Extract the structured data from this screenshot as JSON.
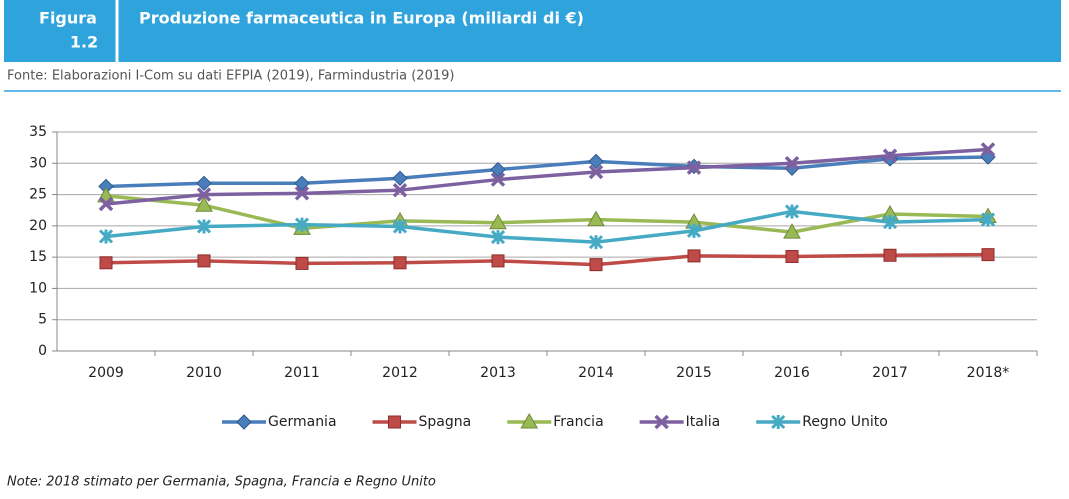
{
  "figure_label": "Figura",
  "figure_number": "1.2",
  "source": "Fonte: Elaborazioni I-Com su dati EFPIA (2019), Farmindustria (2019)",
  "note": "Note: 2018 stimato per Germania, Spagna, Francia e Regno Unito",
  "chart_data": {
    "type": "line",
    "title": "Produzione farmaceutica in Europa (miliardi di €)",
    "categories": [
      "2009",
      "2010",
      "2011",
      "2012",
      "2013",
      "2014",
      "2015",
      "2016",
      "2017",
      "2018*"
    ],
    "series": [
      {
        "name": "Germania",
        "color": "#4a7ebb",
        "marker": "diamond",
        "values": [
          26.3,
          26.8,
          26.8,
          27.6,
          29,
          30.3,
          29.5,
          29.2,
          30.7,
          31
        ]
      },
      {
        "name": "Spagna",
        "color": "#be4b48",
        "marker": "square",
        "values": [
          14.1,
          14.4,
          14,
          14.1,
          14.4,
          13.8,
          15.2,
          15.1,
          15.3,
          15.4
        ]
      },
      {
        "name": "Francia",
        "color": "#98b954",
        "marker": "triangle",
        "values": [
          24.8,
          23.3,
          19.6,
          20.8,
          20.5,
          21,
          20.6,
          19,
          21.9,
          21.5
        ]
      },
      {
        "name": "Italia",
        "color": "#7d60a0",
        "marker": "x",
        "values": [
          23.5,
          25,
          25.2,
          25.7,
          27.4,
          28.6,
          29.3,
          30,
          31.2,
          32.2
        ]
      },
      {
        "name": "Regno Unito",
        "color": "#46aac5",
        "marker": "star",
        "values": [
          18.3,
          19.9,
          20.2,
          19.9,
          18.2,
          17.4,
          19.2,
          22.3,
          20.6,
          21
        ]
      }
    ],
    "ylim": [
      0,
      35
    ],
    "yticks": [
      0,
      5,
      10,
      15,
      20,
      25,
      30,
      35
    ],
    "grid": true,
    "legend": "bottom"
  }
}
